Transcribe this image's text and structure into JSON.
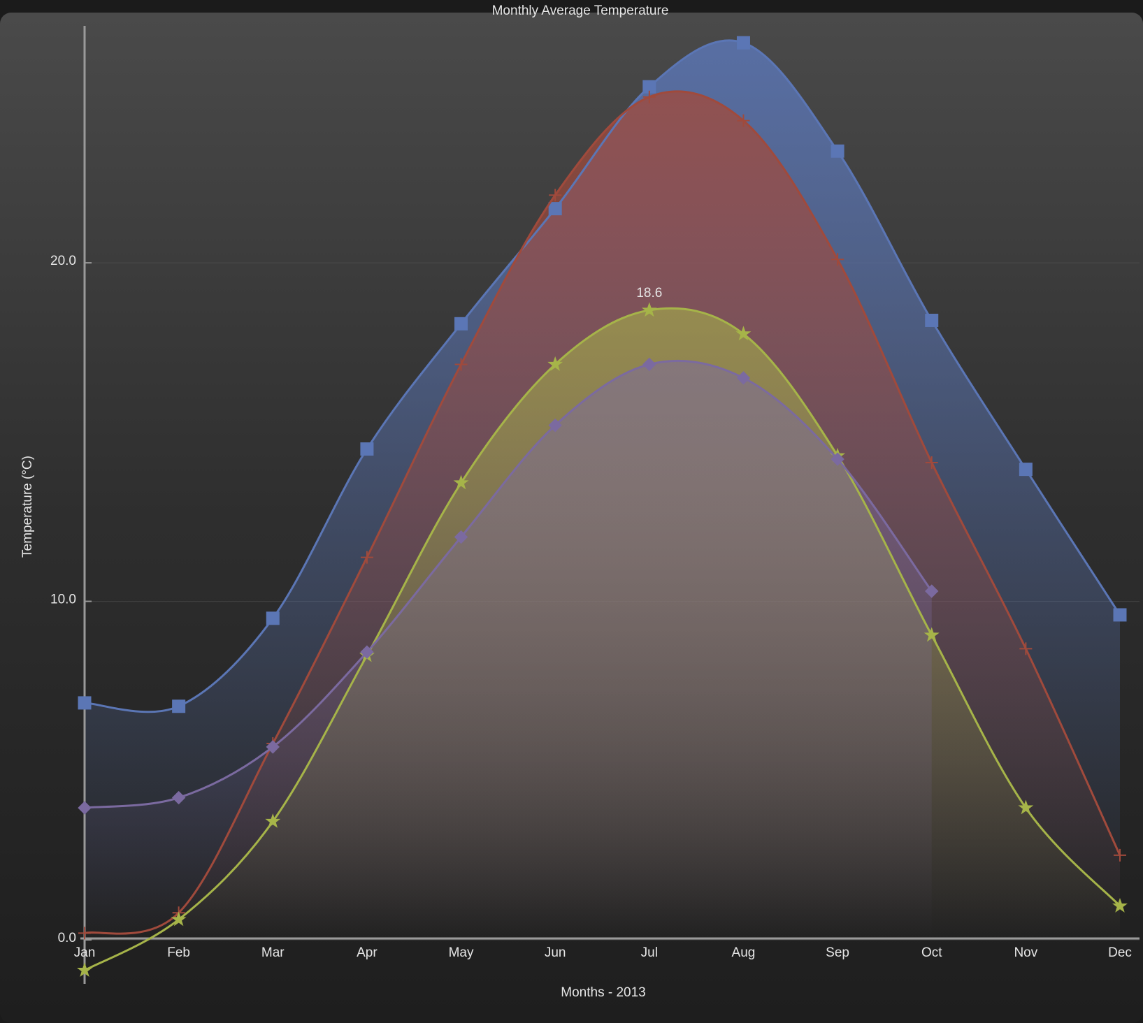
{
  "chart_data": {
    "type": "line",
    "title": "Monthly Average Temperature",
    "x_label": "Months - 2013",
    "y_label": "Temperature (°C)",
    "categories": [
      "Jan",
      "Feb",
      "Mar",
      "Apr",
      "May",
      "Jun",
      "Jul",
      "Aug",
      "Sep",
      "Oct",
      "Nov",
      "Dec"
    ],
    "ylim": [
      -1.3,
      27
    ],
    "yticks": [
      {
        "value": 0,
        "label": "0.0"
      },
      {
        "value": 10,
        "label": "10.0"
      },
      {
        "value": 20,
        "label": "20.0"
      }
    ],
    "grid": true,
    "smooth": true,
    "area": true,
    "series": [
      {
        "color": "#5b76b5",
        "marker": "square",
        "values": [
          7.0,
          6.9,
          9.5,
          14.5,
          18.2,
          21.6,
          25.2,
          26.5,
          23.3,
          18.3,
          13.9,
          9.6
        ]
      },
      {
        "color": "#a04a3c",
        "marker": "plus",
        "values": [
          0.2,
          0.8,
          5.8,
          11.3,
          17.0,
          22.0,
          24.9,
          24.2,
          20.1,
          14.1,
          8.6,
          2.5
        ]
      },
      {
        "color": "#a6b449",
        "marker": "star",
        "values": [
          -0.9,
          0.6,
          3.5,
          8.4,
          13.5,
          17.0,
          18.6,
          17.9,
          14.3,
          9.0,
          3.9,
          1.0
        ],
        "value_labels": [
          null,
          null,
          null,
          null,
          null,
          null,
          "18.6",
          null,
          null,
          null,
          null,
          null
        ]
      },
      {
        "color": "#7b6aa0",
        "marker": "diamond",
        "values": [
          3.9,
          4.2,
          5.7,
          8.5,
          11.9,
          15.2,
          17.0,
          16.6,
          14.2,
          10.3,
          null,
          null
        ]
      }
    ]
  }
}
